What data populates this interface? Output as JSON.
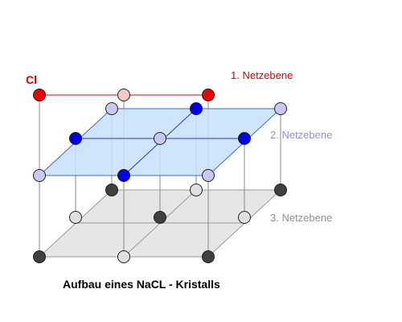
{
  "labels": {
    "cl": "Cl",
    "plane1": "1. Netzebene",
    "plane2": "2. Netzebene",
    "plane3": "3. Netzebene",
    "caption": "Aufbau eines NaCL - Kristalls"
  },
  "colors": {
    "plane1": "#e00000",
    "plane2": "#9090e0",
    "plane3": "#909090",
    "plane2_fill": "#c8e0fa",
    "plane3_fill": "#e6e6e6",
    "cl_red": "#ee0000",
    "cl_pink": "#f8c8c8",
    "na_blue": "#0000ee",
    "na_light": "#c8c8f0",
    "dark_ion": "#404040",
    "light_ion": "#e0e0e0"
  }
}
